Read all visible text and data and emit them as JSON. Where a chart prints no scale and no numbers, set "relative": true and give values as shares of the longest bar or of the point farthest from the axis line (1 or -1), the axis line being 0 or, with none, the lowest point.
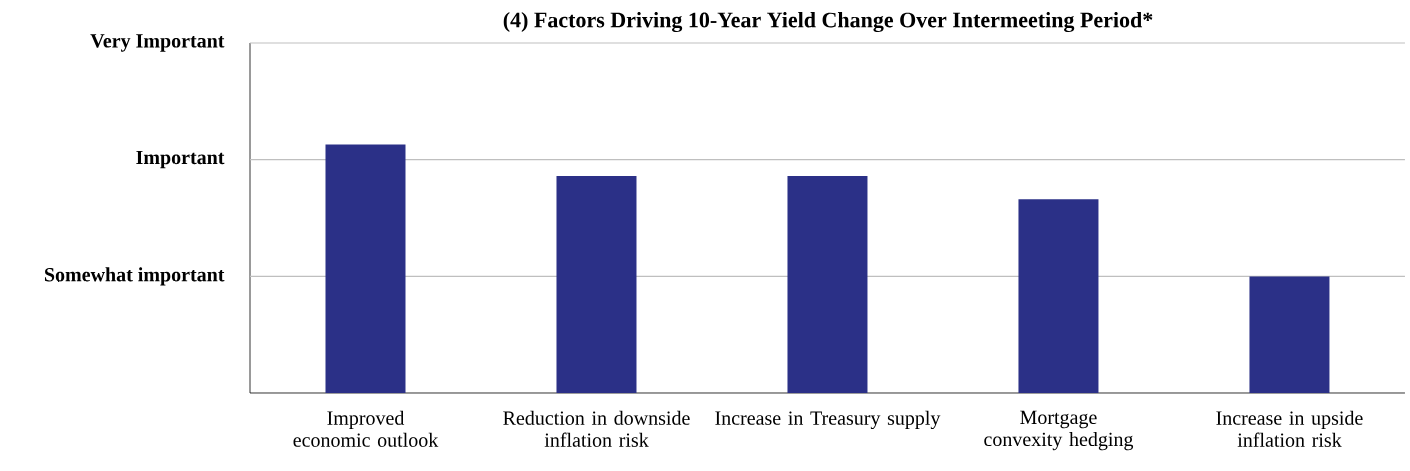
{
  "chart_data": {
    "type": "bar",
    "title": "(4) Factors Driving 10-Year Yield Change Over Intermeeting Period*",
    "categories": [
      "Improved economic outlook",
      "Reduction in downside inflation risk",
      "Increase in Treasury supply",
      "Mortgage convexity hedging",
      "Increase in upside inflation risk"
    ],
    "values": [
      1.0,
      0.873,
      0.873,
      0.779,
      0.469
    ],
    "color": "#2b3087",
    "relative": true,
    "ref_lines": [
      {
        "axis": "y",
        "value": 0.469,
        "label": "Somewhat important",
        "color": "#bfbfbf"
      },
      {
        "axis": "y",
        "value": 0.939,
        "label": "Important",
        "color": "#bfbfbf"
      },
      {
        "axis": "y",
        "value": 1.408,
        "label": "Very Important",
        "color": "#bfbfbf"
      }
    ]
  }
}
